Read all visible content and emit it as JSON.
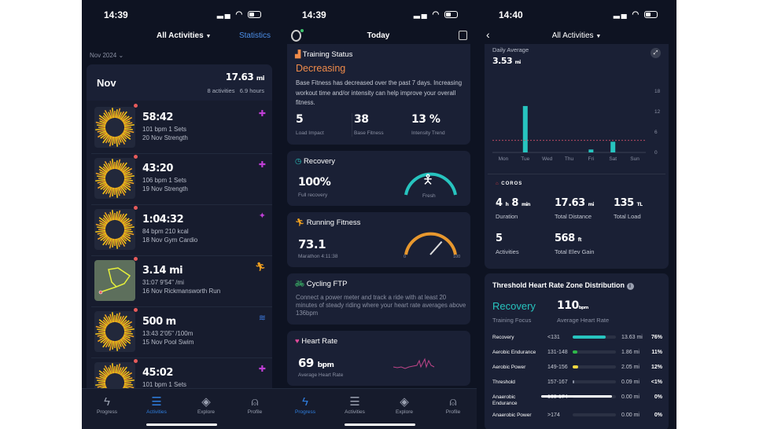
{
  "colors": {
    "accent": "#2f7fe0",
    "teal": "#27c4bf",
    "orange": "#f08b4a",
    "background": "#0e1322",
    "card": "#1a2035"
  },
  "tabbar": [
    {
      "label": "Progress",
      "icon": "progress-icon"
    },
    {
      "label": "Activities",
      "icon": "list-icon"
    },
    {
      "label": "Explore",
      "icon": "compass-icon"
    },
    {
      "label": "Profile",
      "icon": "person-icon"
    }
  ],
  "screen1": {
    "time": "14:39",
    "title": "All Activities",
    "statistics": "Statistics",
    "month_selector": "Nov 2024",
    "summary": {
      "month": "Nov",
      "distance": "17.63",
      "unit": "mi",
      "activities": "8 activities",
      "hours": "6.9 hours"
    },
    "activities": [
      {
        "main": "58:42",
        "line1": "101 bpm  1 Sets",
        "line2": "20 Nov Strength",
        "sport": "strength",
        "color": "#c03fd6"
      },
      {
        "main": "43:20",
        "line1": "106 bpm  1 Sets",
        "line2": "19 Nov Strength",
        "sport": "strength",
        "color": "#c03fd6"
      },
      {
        "main": "1:04:32",
        "line1": "84 bpm  210 kcal",
        "line2": "18 Nov Gym Cardio",
        "sport": "gym-cardio",
        "color": "#c03fd6"
      },
      {
        "main": "3.14 mi",
        "line1": "31:07  9'54\" /mi",
        "line2": "16 Nov Rickmansworth Run",
        "sport": "run",
        "color": "#f0a020"
      },
      {
        "main": "500 m",
        "line1": "13:43  2'05\" /100m",
        "line2": "15 Nov Pool Swim",
        "sport": "swim",
        "color": "#3c7ae0"
      },
      {
        "main": "45:02",
        "line1": "101 bpm  1 Sets",
        "line2": "",
        "sport": "strength",
        "color": "#c03fd6"
      }
    ]
  },
  "screen2": {
    "time": "14:39",
    "title": "Today",
    "training_status": {
      "title": "Training Status",
      "status": "Decreasing",
      "description": "Base Fitness has decreased over the past 7 days. Increasing workout time and/or intensity can help improve your overall fitness.",
      "metrics": [
        {
          "value": "5",
          "label": "Load Impact"
        },
        {
          "value": "38",
          "label": "Base Fitness"
        },
        {
          "value": "13 %",
          "label": "Intensity Trend"
        }
      ]
    },
    "recovery": {
      "title": "Recovery",
      "value": "100%",
      "label": "Full recovery",
      "state": "Fresh",
      "percent": 100
    },
    "running_fitness": {
      "title": "Running Fitness",
      "value": "73.1",
      "label": "Marathon 4:11:38",
      "min": "0",
      "max": "100",
      "gauge": 73.1
    },
    "cycling_ftp": {
      "title": "Cycling FTP",
      "description": "Connect a power meter and track a ride with at least 20 minutes of steady riding where your heart rate averages above 136bpm"
    },
    "heart_rate": {
      "title": "Heart Rate",
      "value": "69",
      "unit": "bpm",
      "label": "Average Heart Rate"
    }
  },
  "screen3": {
    "time": "14:40",
    "title": "All Activities",
    "daily_average_label": "Daily Average",
    "daily_average": "3.53",
    "daily_average_unit": "mi",
    "chart_data": {
      "type": "bar",
      "categories": [
        "Mon",
        "Tue",
        "Wed",
        "Thu",
        "Fri",
        "Sat",
        "Sun"
      ],
      "values": [
        0,
        13.63,
        0,
        0,
        0.86,
        3.14,
        0
      ],
      "yticks": [
        "18",
        "12",
        "6",
        "0"
      ],
      "ylim": [
        0,
        18
      ],
      "reference_line": 3.53,
      "bar_color": "#27c4bf",
      "reference_color": "#d0506a"
    },
    "brand": "COROS",
    "stats": [
      {
        "value": "4",
        "unit1": "h",
        "value2": "8",
        "unit2": "min",
        "label": "Duration"
      },
      {
        "value": "17.63",
        "unit1": "mi",
        "label": "Total Distance"
      },
      {
        "value": "135",
        "unit1": "TL",
        "label": "Total Load"
      },
      {
        "value": "5",
        "label": "Activities"
      },
      {
        "value": "568",
        "unit1": "ft",
        "label": "Total Elev Gain"
      }
    ],
    "zones": {
      "title": "Threshold Heart Rate Zone Distribution",
      "focus": "Recovery",
      "focus_label": "Training Focus",
      "avg_hr": "110",
      "avg_hr_unit": "bpm",
      "avg_hr_label": "Average Heart Rate",
      "rows": [
        {
          "name": "Recovery",
          "range": "<131",
          "distance": "13.63 mi",
          "percent": "76%",
          "fraction": 0.76,
          "color": "#27c4bf"
        },
        {
          "name": "Aerobic Endurance",
          "range": "131-148",
          "distance": "1.86 mi",
          "percent": "11%",
          "fraction": 0.11,
          "color": "#2fb84a"
        },
        {
          "name": "Aerobic Power",
          "range": "149-156",
          "distance": "2.05 mi",
          "percent": "12%",
          "fraction": 0.12,
          "color": "#f0d840"
        },
        {
          "name": "Threshold",
          "range": "157-167",
          "distance": "0.09 mi",
          "percent": "<1%",
          "fraction": 0.01,
          "color": "#8a90a3"
        },
        {
          "name": "Anaerobic Endurance",
          "range": "168-174",
          "distance": "0.00 mi",
          "percent": "0%",
          "fraction": 0,
          "color": "#8a90a3"
        },
        {
          "name": "Anaerobic Power",
          "range": ">174",
          "distance": "0.00 mi",
          "percent": "0%",
          "fraction": 0,
          "color": "#8a90a3"
        }
      ]
    }
  }
}
